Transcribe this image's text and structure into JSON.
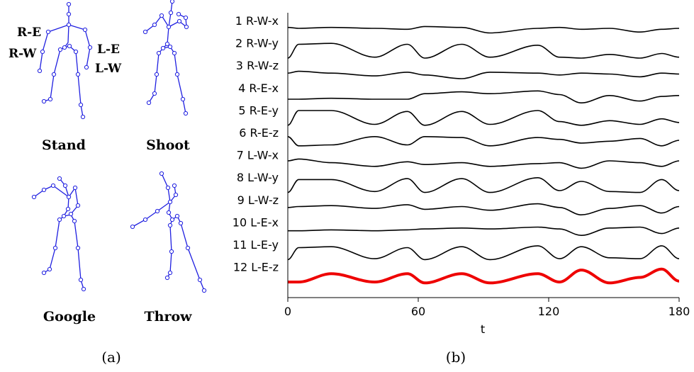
{
  "panel_a": {
    "caption": "(a)",
    "poses": [
      {
        "key": "stand",
        "label": "Stand"
      },
      {
        "key": "shoot",
        "label": "Shoot"
      },
      {
        "key": "google",
        "label": "Google"
      },
      {
        "key": "throw",
        "label": "Throw"
      }
    ],
    "joint_labels": {
      "re": "R-E",
      "rw": "R-W",
      "le": "L-E",
      "lw": "L-W"
    },
    "skeleton_color": "#1f1fe0"
  },
  "panel_b": {
    "caption": "(b)",
    "xlabel": "t",
    "highlight_color": "#ee0000",
    "line_color": "#000000"
  },
  "chart_data": {
    "type": "line",
    "xlabel": "t",
    "xlim": [
      0,
      180
    ],
    "xticks": [
      0,
      60,
      120,
      180
    ],
    "series_labels": [
      "1 R-W-x",
      "2 R-W-y",
      "3 R-W-z",
      "4 R-E-x",
      "5 R-E-y",
      "6 R-E-z",
      "7 L-W-x",
      "8 L-W-y",
      "9 L-W-z",
      "10 L-E-x",
      "11 L-E-y",
      "12 L-E-z"
    ],
    "highlighted_series": "12 L-E-z",
    "segments_t": [
      0,
      5,
      20,
      40,
      55,
      63,
      80,
      93,
      115,
      125,
      135,
      148,
      162,
      172,
      180
    ],
    "series": [
      {
        "name": "1 R-W-x",
        "values": [
          0.55,
          0.5,
          0.55,
          0.5,
          0.45,
          0.6,
          0.55,
          0.25,
          0.5,
          0.55,
          0.45,
          0.5,
          0.3,
          0.45,
          0.5
        ]
      },
      {
        "name": "2 R-W-y",
        "values": [
          0.1,
          0.85,
          0.9,
          0.15,
          0.85,
          0.1,
          0.85,
          0.15,
          0.8,
          0.15,
          0.1,
          0.3,
          0.1,
          0.35,
          0.15
        ]
      },
      {
        "name": "3 R-W-z",
        "values": [
          0.5,
          0.6,
          0.5,
          0.35,
          0.55,
          0.4,
          0.2,
          0.55,
          0.5,
          0.4,
          0.5,
          0.45,
          0.3,
          0.5,
          0.45
        ]
      },
      {
        "name": "4 R-E-x",
        "values": [
          0.3,
          0.3,
          0.35,
          0.3,
          0.3,
          0.6,
          0.7,
          0.6,
          0.75,
          0.55,
          0.1,
          0.5,
          0.2,
          0.45,
          0.5
        ]
      },
      {
        "name": "5 R-E-y",
        "values": [
          0.1,
          0.9,
          0.9,
          0.15,
          0.85,
          0.1,
          0.85,
          0.15,
          0.9,
          0.3,
          0.1,
          0.35,
          0.15,
          0.45,
          0.25
        ]
      },
      {
        "name": "6 R-E-z",
        "values": [
          0.7,
          0.2,
          0.25,
          0.7,
          0.25,
          0.7,
          0.65,
          0.2,
          0.65,
          0.55,
          0.35,
          0.45,
          0.6,
          0.2,
          0.5
        ]
      },
      {
        "name": "7 L-W-x",
        "values": [
          0.6,
          0.7,
          0.5,
          0.3,
          0.55,
          0.4,
          0.5,
          0.3,
          0.45,
          0.5,
          0.2,
          0.6,
          0.5,
          0.3,
          0.6
        ]
      },
      {
        "name": "8 L-W-y",
        "values": [
          0.1,
          0.8,
          0.8,
          0.15,
          0.85,
          0.1,
          0.85,
          0.1,
          0.9,
          0.2,
          0.7,
          0.15,
          0.1,
          0.8,
          0.2
        ]
      },
      {
        "name": "9 L-W-z",
        "values": [
          0.5,
          0.55,
          0.6,
          0.45,
          0.65,
          0.4,
          0.55,
          0.35,
          0.7,
          0.5,
          0.1,
          0.45,
          0.6,
          0.2,
          0.55
        ]
      },
      {
        "name": "10 L-E-x",
        "values": [
          0.45,
          0.45,
          0.5,
          0.45,
          0.5,
          0.55,
          0.6,
          0.55,
          0.65,
          0.55,
          0.2,
          0.6,
          0.65,
          0.3,
          0.6
        ]
      },
      {
        "name": "11 L-E-y",
        "values": [
          0.1,
          0.75,
          0.8,
          0.15,
          0.75,
          0.1,
          0.8,
          0.1,
          0.85,
          0.15,
          0.8,
          0.2,
          0.15,
          0.85,
          0.15
        ]
      },
      {
        "name": "12 L-E-z",
        "values": [
          0.1,
          0.1,
          0.55,
          0.1,
          0.55,
          0.05,
          0.55,
          0.05,
          0.55,
          0.1,
          0.75,
          0.05,
          0.35,
          0.8,
          0.15
        ]
      }
    ]
  }
}
